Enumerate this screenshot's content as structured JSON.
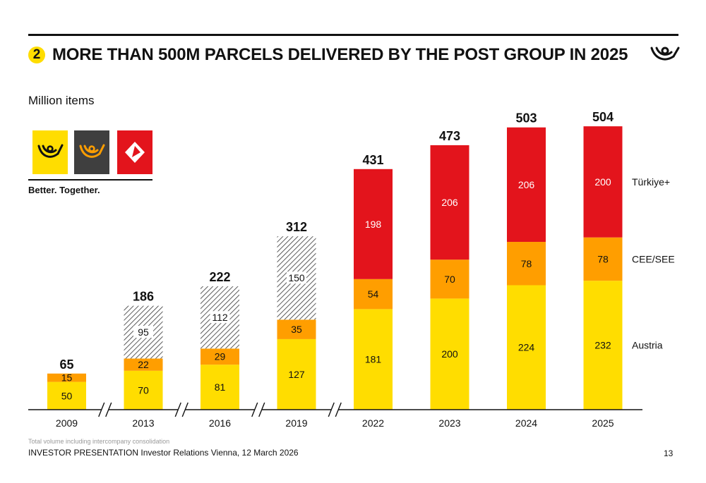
{
  "header": {
    "number": "2",
    "title": "MORE THAN 500M PARCELS DELIVERED BY THE POST GROUP IN 2025"
  },
  "brand": {
    "tagline": "Better. Together.",
    "colors": {
      "yellow": "#FFDD00",
      "orange": "#FF9E00",
      "red": "#E3141C",
      "dark": "#3F3F3F"
    }
  },
  "footer": {
    "note": "Total volume including intercompany consolidation",
    "presentation": "INVESTOR PRESENTATION Investor Relations Vienna, 12 March 2026",
    "page": "13"
  },
  "chart_data": {
    "type": "bar",
    "stacked": true,
    "unit_label": "Million items",
    "categories": [
      "2009",
      "2013",
      "2016",
      "2019",
      "2022",
      "2023",
      "2024",
      "2025"
    ],
    "series": [
      {
        "name": "Austria",
        "color": "#FFDD00",
        "values": [
          50,
          70,
          81,
          127,
          181,
          200,
          224,
          232
        ]
      },
      {
        "name": "CEE/SEE",
        "color": "#FF9E00",
        "values": [
          15,
          22,
          29,
          35,
          54,
          70,
          78,
          78
        ]
      },
      {
        "name": "",
        "pattern": "hatched",
        "values": [
          0,
          95,
          112,
          150,
          0,
          0,
          0,
          0
        ]
      },
      {
        "name": "Türkiye+",
        "color": "#E3141C",
        "values": [
          0,
          0,
          0,
          0,
          198,
          206,
          206,
          200
        ]
      }
    ],
    "totals": [
      65,
      186,
      222,
      312,
      431,
      473,
      503,
      504
    ],
    "axis_breaks_after": [
      "2009",
      "2013",
      "2016",
      "2019"
    ],
    "ylim": [
      0,
      520
    ],
    "legend": "right, inline labels"
  }
}
